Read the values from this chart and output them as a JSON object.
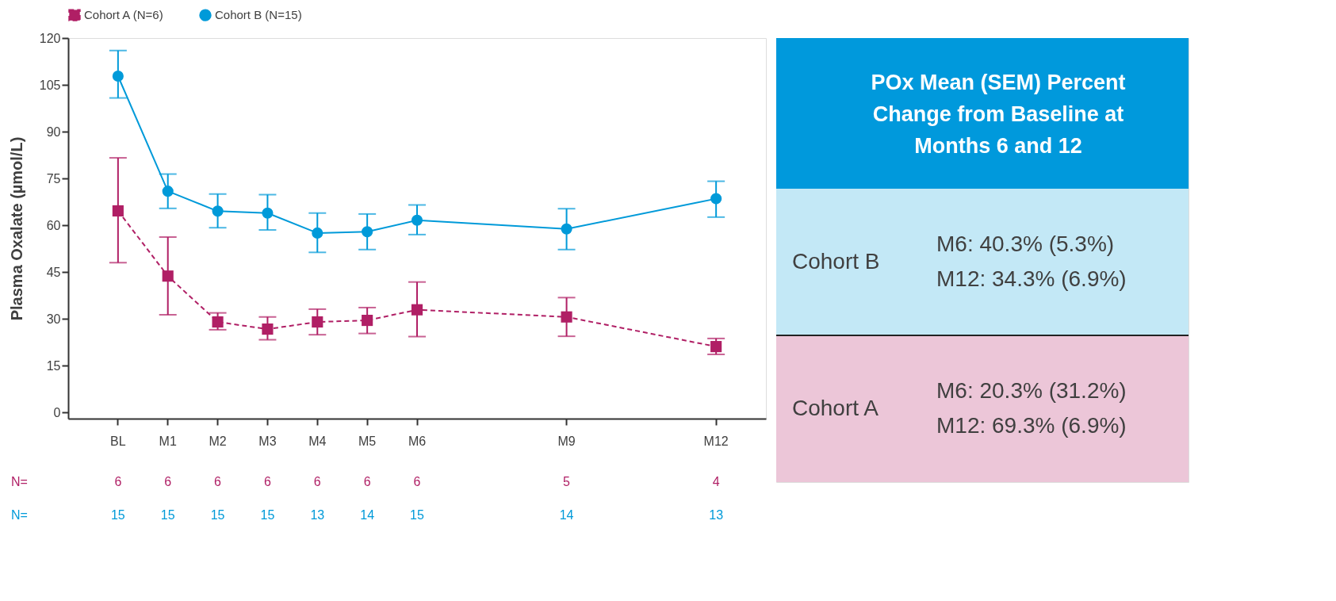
{
  "chart_data": [
    {
      "type": "line",
      "ylabel": "Plasma Oxalate (µmol/L)",
      "legend": "top",
      "categories": [
        "BL",
        "M1",
        "M2",
        "M3",
        "M4",
        "M5",
        "M6",
        null,
        null,
        "M9",
        null,
        null,
        "M12"
      ],
      "ylim": [
        -2,
        120
      ],
      "yticks": [
        0,
        15,
        30,
        45,
        60,
        75,
        90,
        105,
        120
      ],
      "series": [
        {
          "name": "Cohort A (N=6)",
          "color": "#b01f65",
          "marker": "square",
          "line_style": "dashed",
          "values": [
            64.6,
            43.7,
            29.0,
            26.7,
            29.0,
            29.5,
            32.9,
            null,
            null,
            30.6,
            null,
            null,
            21.1
          ],
          "errors": [
            [
              48.0,
              81.6
            ],
            [
              31.3,
              56.2
            ],
            [
              26.5,
              31.9
            ],
            [
              23.3,
              30.6
            ],
            [
              24.9,
              33.1
            ],
            [
              25.3,
              33.6
            ],
            [
              24.3,
              41.8
            ],
            null,
            null,
            [
              24.4,
              36.8
            ],
            null,
            null,
            [
              18.6,
              23.7
            ]
          ]
        },
        {
          "name": "Cohort B (N=15)",
          "color": "#009ad9",
          "marker": "circle",
          "line_style": "solid",
          "values": [
            107.8,
            70.9,
            64.5,
            63.9,
            57.5,
            57.9,
            61.6,
            null,
            null,
            58.8,
            null,
            null,
            68.5
          ],
          "errors": [
            [
              100.8,
              116.0
            ],
            [
              65.4,
              76.4
            ],
            [
              59.2,
              70.0
            ],
            [
              58.5,
              69.8
            ],
            [
              51.3,
              63.9
            ],
            [
              52.2,
              63.6
            ],
            [
              57.0,
              66.5
            ],
            null,
            null,
            [
              52.2,
              65.3
            ],
            null,
            null,
            [
              62.6,
              74.1
            ]
          ]
        }
      ],
      "annotations": [
        "N=",
        "6",
        "6",
        "6",
        "6",
        "6",
        "6",
        "6",
        "5",
        "4",
        "N=",
        "15",
        "15",
        "15",
        "15",
        "13",
        "14",
        "15",
        "14",
        "13"
      ]
    },
    {
      "type": "other",
      "title": "POx Mean (SEM) Percent Change from Baseline at Months 6 and 12",
      "annotations": [
        "Cohort B",
        "M6: 40.3% (5.3%)",
        "M12: 34.3% (6.9%)",
        "Cohort A",
        "M6: 20.3% (31.2%)",
        "M12: 69.3% (6.9%)"
      ]
    }
  ]
}
